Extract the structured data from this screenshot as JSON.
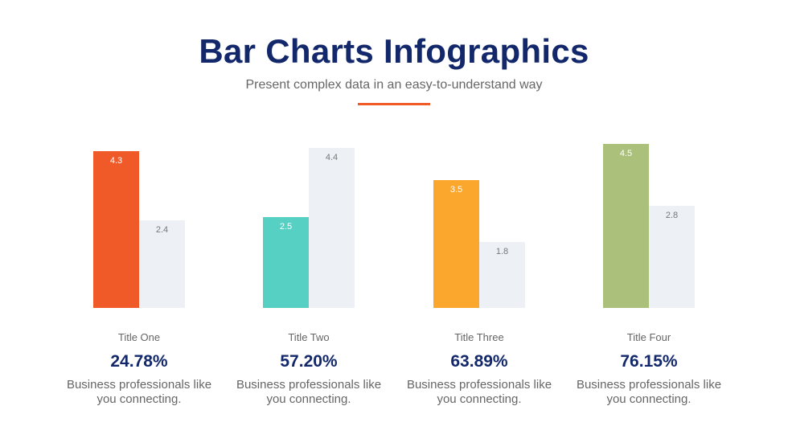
{
  "header": {
    "title": "Bar Charts Infographics",
    "subtitle": "Present complex data in an easy-to-understand way",
    "accent_color": "#f05a28"
  },
  "chart_data": {
    "type": "bar",
    "categories": [
      "Title One",
      "Title Two",
      "Title Three",
      "Title Four"
    ],
    "series": [
      {
        "values": [
          4.3,
          2.5,
          3.5,
          4.5
        ],
        "colors": [
          "#f05a28",
          "#57d0c4",
          "#fba62c",
          "#abc07b"
        ]
      },
      {
        "values": [
          2.4,
          4.4,
          1.8,
          2.8
        ],
        "color": "#edf0f5"
      }
    ],
    "ylim": [
      0,
      4.5
    ],
    "grid": false
  },
  "groups": [
    {
      "title": "Title One",
      "percent": "24.78%",
      "desc": "Business professionals like you connecting."
    },
    {
      "title": "Title Two",
      "percent": "57.20%",
      "desc": "Business professionals like you connecting."
    },
    {
      "title": "Title Three",
      "percent": "63.89%",
      "desc": "Business professionals like you connecting."
    },
    {
      "title": "Title Four",
      "percent": "76.15%",
      "desc": "Business professionals like you connecting."
    }
  ]
}
